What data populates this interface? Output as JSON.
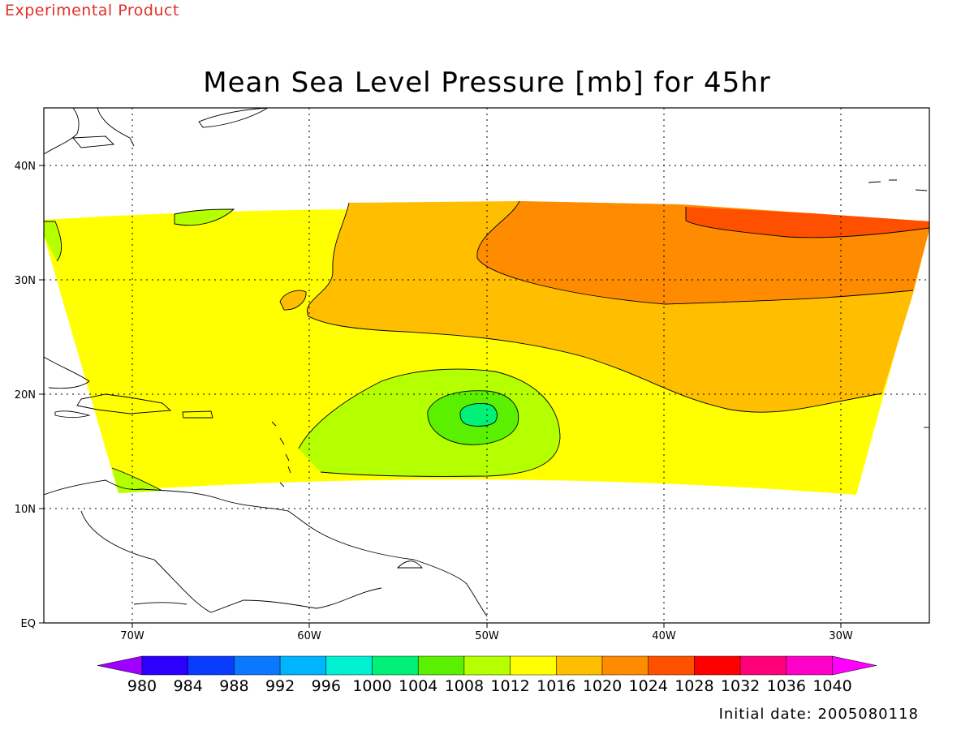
{
  "header": {
    "product_label": "Experimental Product"
  },
  "title": "Mean Sea Level Pressure [mb] for 45hr",
  "footer": {
    "initial_date": "Initial date: 2005080118"
  },
  "axes": {
    "lon_ticks": [
      "70W",
      "60W",
      "50W",
      "40W",
      "30W"
    ],
    "lat_ticks": [
      "EQ",
      "10N",
      "20N",
      "30N",
      "40N"
    ]
  },
  "colorbar": {
    "labels": [
      "980",
      "984",
      "988",
      "992",
      "996",
      "1000",
      "1004",
      "1008",
      "1012",
      "1016",
      "1020",
      "1024",
      "1028",
      "1032",
      "1036",
      "1040"
    ],
    "colors": [
      "#a000ff",
      "#2b00ff",
      "#0a3cff",
      "#0a78ff",
      "#00b4ff",
      "#00f0d2",
      "#00f078",
      "#5af000",
      "#b4ff00",
      "#ffff00",
      "#ffbe00",
      "#ff8c00",
      "#ff5000",
      "#ff0000",
      "#ff0078",
      "#ff00c8",
      "#ff00ff"
    ]
  },
  "chart_data": {
    "type": "heatmap",
    "variable": "Mean Sea Level Pressure",
    "units": "mb",
    "forecast_hour": 45,
    "domain": {
      "lon_min": -75,
      "lon_max": -25,
      "lat_min": 0,
      "lat_max": 45
    },
    "field_coverage": {
      "lon_min": -75,
      "lon_max": -25,
      "lat_min": 11,
      "lat_max": 37
    },
    "contour_interval_mb": 4,
    "levels_shown": [
      1008,
      1012,
      1016,
      1020,
      1024,
      1028
    ],
    "features": [
      {
        "type": "low",
        "center_lon": -50.5,
        "center_lat": 18.2,
        "min_band_mb": [
          1004,
          1008
        ]
      },
      {
        "type": "high_ridge",
        "lon_range": [
          -37,
          -25
        ],
        "lat_range": [
          33.5,
          36
        ],
        "band_mb": [
          1024,
          1028
        ]
      }
    ],
    "grid": true
  }
}
